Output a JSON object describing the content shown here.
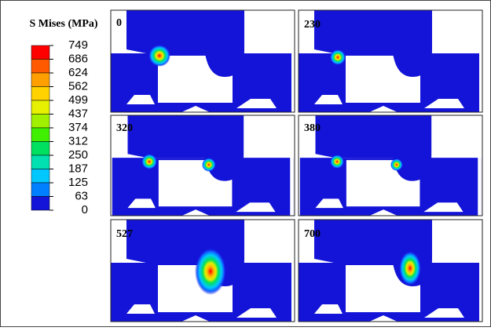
{
  "legend": {
    "title": "S Mises (MPa)",
    "labels": [
      "749",
      "686",
      "624",
      "562",
      "499",
      "437",
      "374",
      "312",
      "250",
      "187",
      "125",
      "63",
      "0"
    ]
  },
  "panels": [
    {
      "label": "0"
    },
    {
      "label": "230"
    },
    {
      "label": "320"
    },
    {
      "label": "380"
    },
    {
      "label": "527"
    },
    {
      "label": "700"
    }
  ]
}
